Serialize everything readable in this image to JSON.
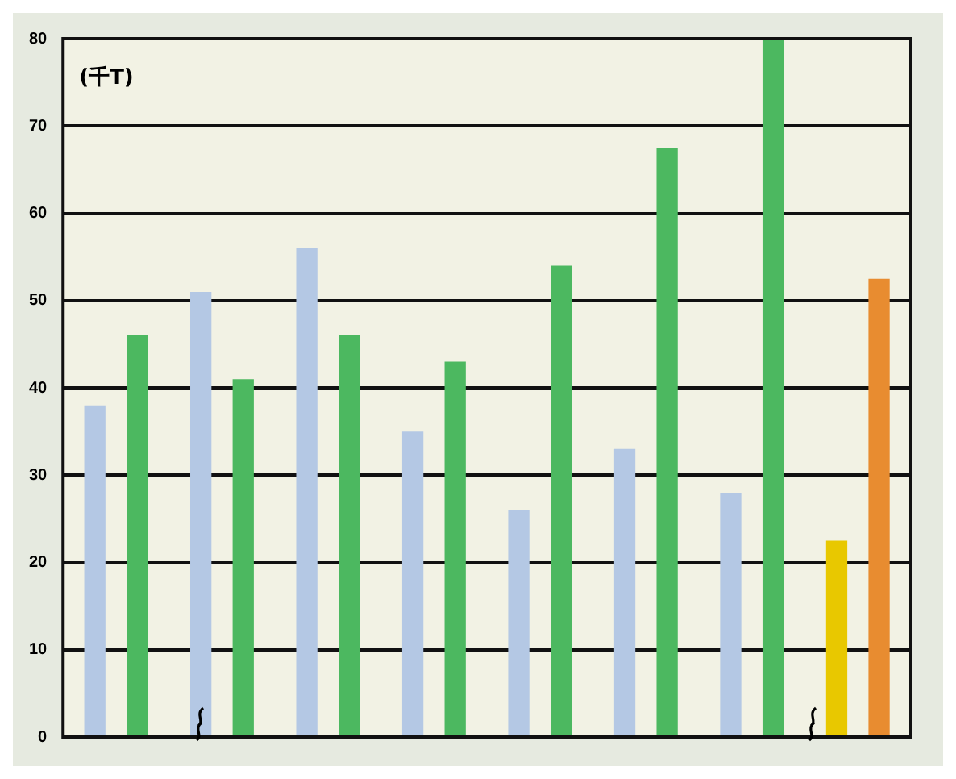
{
  "chart_data": {
    "type": "bar",
    "ylabel": "(千T)",
    "categories": [
      null,
      null,
      null,
      null,
      null,
      null,
      null,
      null
    ],
    "series": [
      {
        "colors": [
          "#b4c8e4",
          "#b4c8e4",
          "#b4c8e4",
          "#b4c8e4",
          "#b4c8e4",
          "#b4c8e4",
          "#b4c8e4",
          "#e8c800"
        ],
        "values": [
          38,
          51,
          56,
          35,
          26,
          33,
          28,
          22.5
        ]
      },
      {
        "colors": [
          "#4cb860",
          "#4cb860",
          "#4cb860",
          "#4cb860",
          "#4cb860",
          "#4cb860",
          "#4cb860",
          "#e88c30"
        ],
        "values": [
          46,
          41,
          46,
          43,
          54,
          67.5,
          80,
          52.5
        ]
      }
    ],
    "ylim": [
      0,
      80
    ],
    "yticks": [
      0,
      10,
      20,
      30,
      40,
      50,
      60,
      70,
      80
    ],
    "grid": "y",
    "legend": false
  }
}
